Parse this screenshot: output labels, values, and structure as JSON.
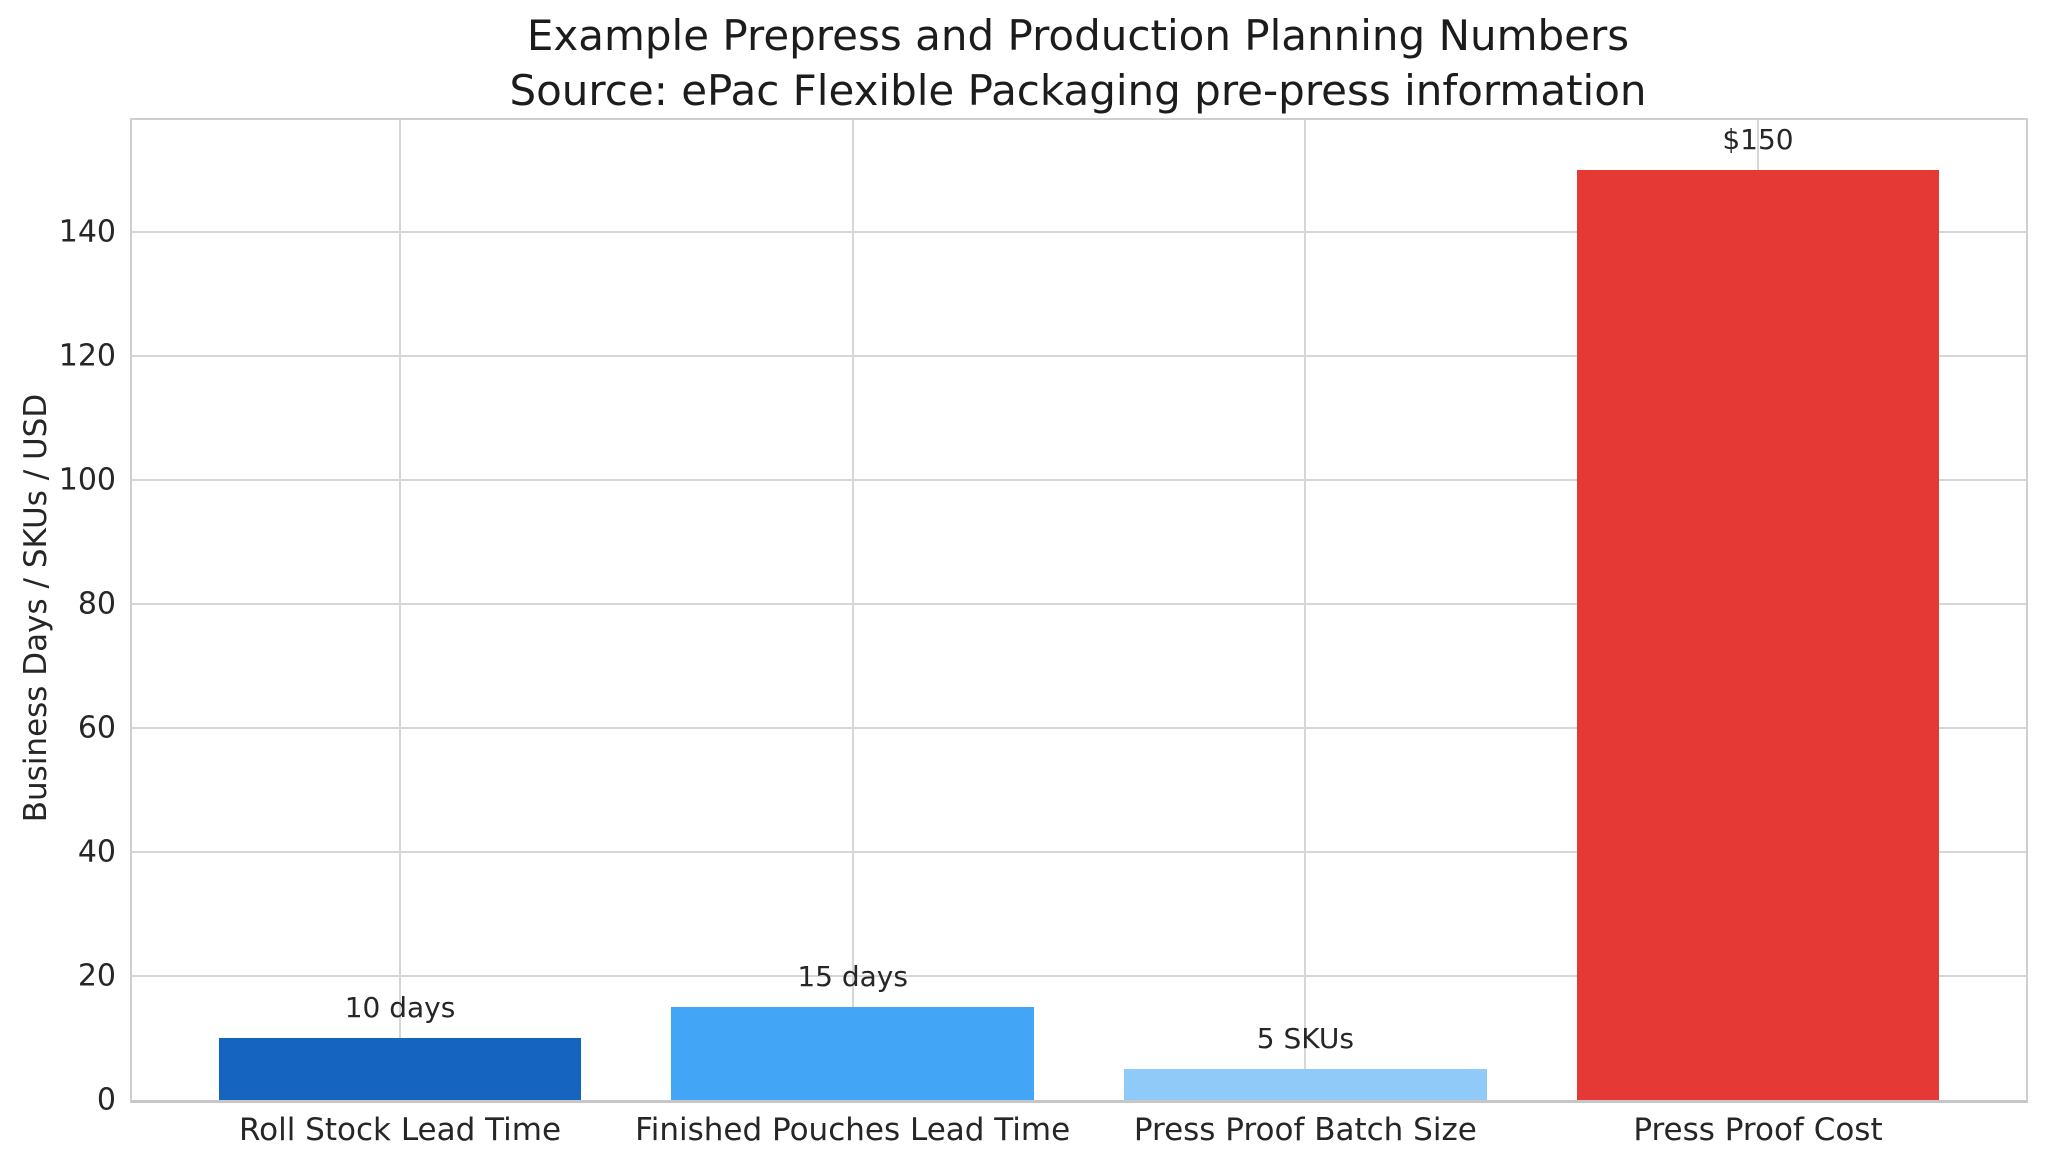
{
  "colors": {
    "background": "#ffffff",
    "grid": "#d6d6d6",
    "spine": "#cfcfcf",
    "bottom_spine": "#c6c6c6",
    "text": "#262626"
  },
  "chart_data": {
    "type": "bar",
    "title": "Example Prepress and Production Planning Numbers",
    "subtitle": "Source: ePac Flexible Packaging pre-press information",
    "xlabel": "",
    "ylabel": "Business Days / SKUs / USD",
    "categories": [
      "Roll Stock Lead Time",
      "Finished Pouches Lead Time",
      "Press Proof Batch Size",
      "Press Proof Cost"
    ],
    "values": [
      10,
      15,
      5,
      150
    ],
    "bar_labels": [
      "10 days",
      "15 days",
      "5 SKUs",
      "$150"
    ],
    "bar_colors": [
      "#1565c0",
      "#42a5f5",
      "#90caf9",
      "#e53935"
    ],
    "yticks": [
      0,
      20,
      40,
      60,
      80,
      100,
      120,
      140
    ],
    "ylim": [
      0,
      158
    ],
    "grid": true,
    "legend_position": "none"
  },
  "title_block": {
    "full_title": "Example Prepress and Production Planning Numbers\nSource: ePac Flexible Packaging pre-press information"
  }
}
